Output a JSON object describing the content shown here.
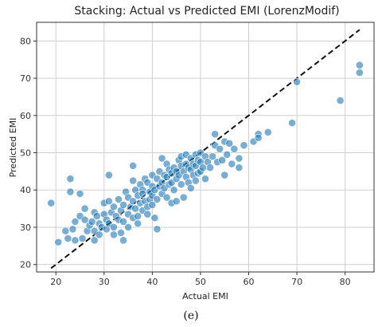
{
  "chart_data": {
    "type": "scatter",
    "title": "Stacking: Actual vs Predicted EMI (LorenzModif)",
    "xlabel": "Actual EMI",
    "ylabel": "Predicted EMI",
    "caption": "(e)",
    "xlim": [
      16,
      86
    ],
    "ylim": [
      18,
      85
    ],
    "xticks": [
      20,
      30,
      40,
      50,
      60,
      70,
      80
    ],
    "yticks": [
      20,
      30,
      40,
      50,
      60,
      70,
      80
    ],
    "grid": true,
    "point_color": "#1f77b4",
    "reference_line": {
      "style": "dashed",
      "color": "#111111",
      "from": [
        19,
        19
      ],
      "to": [
        83,
        83
      ]
    },
    "series": [
      {
        "points": [
          [
            19,
            36.5
          ],
          [
            20.5,
            26
          ],
          [
            22,
            29
          ],
          [
            22.5,
            27
          ],
          [
            23,
            43
          ],
          [
            23,
            39.5
          ],
          [
            23.5,
            29.5
          ],
          [
            24,
            26.5
          ],
          [
            24,
            31.5
          ],
          [
            25,
            39
          ],
          [
            25,
            33
          ],
          [
            25.5,
            27
          ],
          [
            26,
            35
          ],
          [
            26,
            32
          ],
          [
            26.5,
            29
          ],
          [
            27,
            30.5
          ],
          [
            27.5,
            31.5
          ],
          [
            28,
            34
          ],
          [
            28,
            29
          ],
          [
            28,
            26.5
          ],
          [
            28.5,
            33
          ],
          [
            29,
            31
          ],
          [
            29,
            28
          ],
          [
            29.5,
            30
          ],
          [
            30,
            36.5
          ],
          [
            30,
            33.5
          ],
          [
            30.5,
            32
          ],
          [
            30.5,
            29.5
          ],
          [
            31,
            44
          ],
          [
            31,
            37
          ],
          [
            31,
            31
          ],
          [
            31.5,
            34
          ],
          [
            32,
            35.5
          ],
          [
            32,
            30
          ],
          [
            32,
            28
          ],
          [
            32.5,
            33
          ],
          [
            33,
            37.5
          ],
          [
            33,
            32
          ],
          [
            33.5,
            34.5
          ],
          [
            33.5,
            28.5
          ],
          [
            34,
            36
          ],
          [
            34,
            26.5
          ],
          [
            34,
            31.5
          ],
          [
            34.5,
            39.5
          ],
          [
            35,
            38
          ],
          [
            35,
            33.5
          ],
          [
            35,
            30
          ],
          [
            35.5,
            35.5
          ],
          [
            36,
            46.5
          ],
          [
            36,
            42.5
          ],
          [
            36,
            37
          ],
          [
            36,
            32.5
          ],
          [
            36.5,
            40
          ],
          [
            36.5,
            35
          ],
          [
            37,
            38.5
          ],
          [
            37,
            33
          ],
          [
            37,
            31
          ],
          [
            37.5,
            41.5
          ],
          [
            37.5,
            36.5
          ],
          [
            38,
            40
          ],
          [
            38,
            34.5
          ],
          [
            38,
            39
          ],
          [
            38.5,
            43
          ],
          [
            38.5,
            37
          ],
          [
            39,
            42
          ],
          [
            39,
            35.5
          ],
          [
            39,
            33.5
          ],
          [
            39.5,
            39.5
          ],
          [
            39.5,
            37.5
          ],
          [
            40,
            41
          ],
          [
            40,
            44
          ],
          [
            40,
            38.5
          ],
          [
            40,
            36
          ],
          [
            40.5,
            40
          ],
          [
            40.5,
            32.5
          ],
          [
            41,
            43
          ],
          [
            41,
            37.5
          ],
          [
            41,
            29.5
          ],
          [
            41.5,
            45
          ],
          [
            41.5,
            41
          ],
          [
            42,
            48.5
          ],
          [
            42,
            42
          ],
          [
            42,
            39
          ],
          [
            42.5,
            44
          ],
          [
            42.5,
            40.5
          ],
          [
            43,
            47
          ],
          [
            43,
            43.5
          ],
          [
            43,
            38
          ],
          [
            43.5,
            45.5
          ],
          [
            43.5,
            41.5
          ],
          [
            44,
            44.5
          ],
          [
            44,
            42
          ],
          [
            44,
            36.5
          ],
          [
            44.5,
            46
          ],
          [
            44.5,
            40
          ],
          [
            45,
            45
          ],
          [
            45,
            43
          ],
          [
            45,
            37
          ],
          [
            45.5,
            48
          ],
          [
            45.5,
            44
          ],
          [
            46,
            49
          ],
          [
            46,
            46.5
          ],
          [
            46,
            41.5
          ],
          [
            46.5,
            45
          ],
          [
            46.5,
            38
          ],
          [
            47,
            49.5
          ],
          [
            47,
            47
          ],
          [
            47,
            43.5
          ],
          [
            47.5,
            46
          ],
          [
            47.5,
            42
          ],
          [
            48,
            48.5
          ],
          [
            48,
            45.5
          ],
          [
            48,
            40.5
          ],
          [
            48.5,
            47
          ],
          [
            48.5,
            44
          ],
          [
            49,
            49.5
          ],
          [
            49,
            46.5
          ],
          [
            49,
            42.5
          ],
          [
            49.5,
            48
          ],
          [
            49.5,
            44.5
          ],
          [
            50,
            50
          ],
          [
            50,
            47.5
          ],
          [
            50,
            45
          ],
          [
            50.5,
            46
          ],
          [
            51,
            49
          ],
          [
            51,
            43
          ],
          [
            51.5,
            47.5
          ],
          [
            52,
            46
          ],
          [
            52.5,
            49
          ],
          [
            53,
            55
          ],
          [
            53,
            52
          ],
          [
            53.5,
            47.5
          ],
          [
            54,
            51
          ],
          [
            54.5,
            48
          ],
          [
            55,
            53
          ],
          [
            55,
            44
          ],
          [
            55.5,
            49.5
          ],
          [
            56,
            52.5
          ],
          [
            56.5,
            47
          ],
          [
            57,
            51
          ],
          [
            58,
            48.5
          ],
          [
            58,
            46
          ],
          [
            59,
            52
          ],
          [
            61,
            53
          ],
          [
            62,
            55
          ],
          [
            62,
            54
          ],
          [
            64,
            55.5
          ],
          [
            69,
            58
          ],
          [
            70,
            69
          ],
          [
            79,
            64
          ],
          [
            83,
            73.5
          ],
          [
            83,
            71.5
          ]
        ]
      }
    ]
  }
}
